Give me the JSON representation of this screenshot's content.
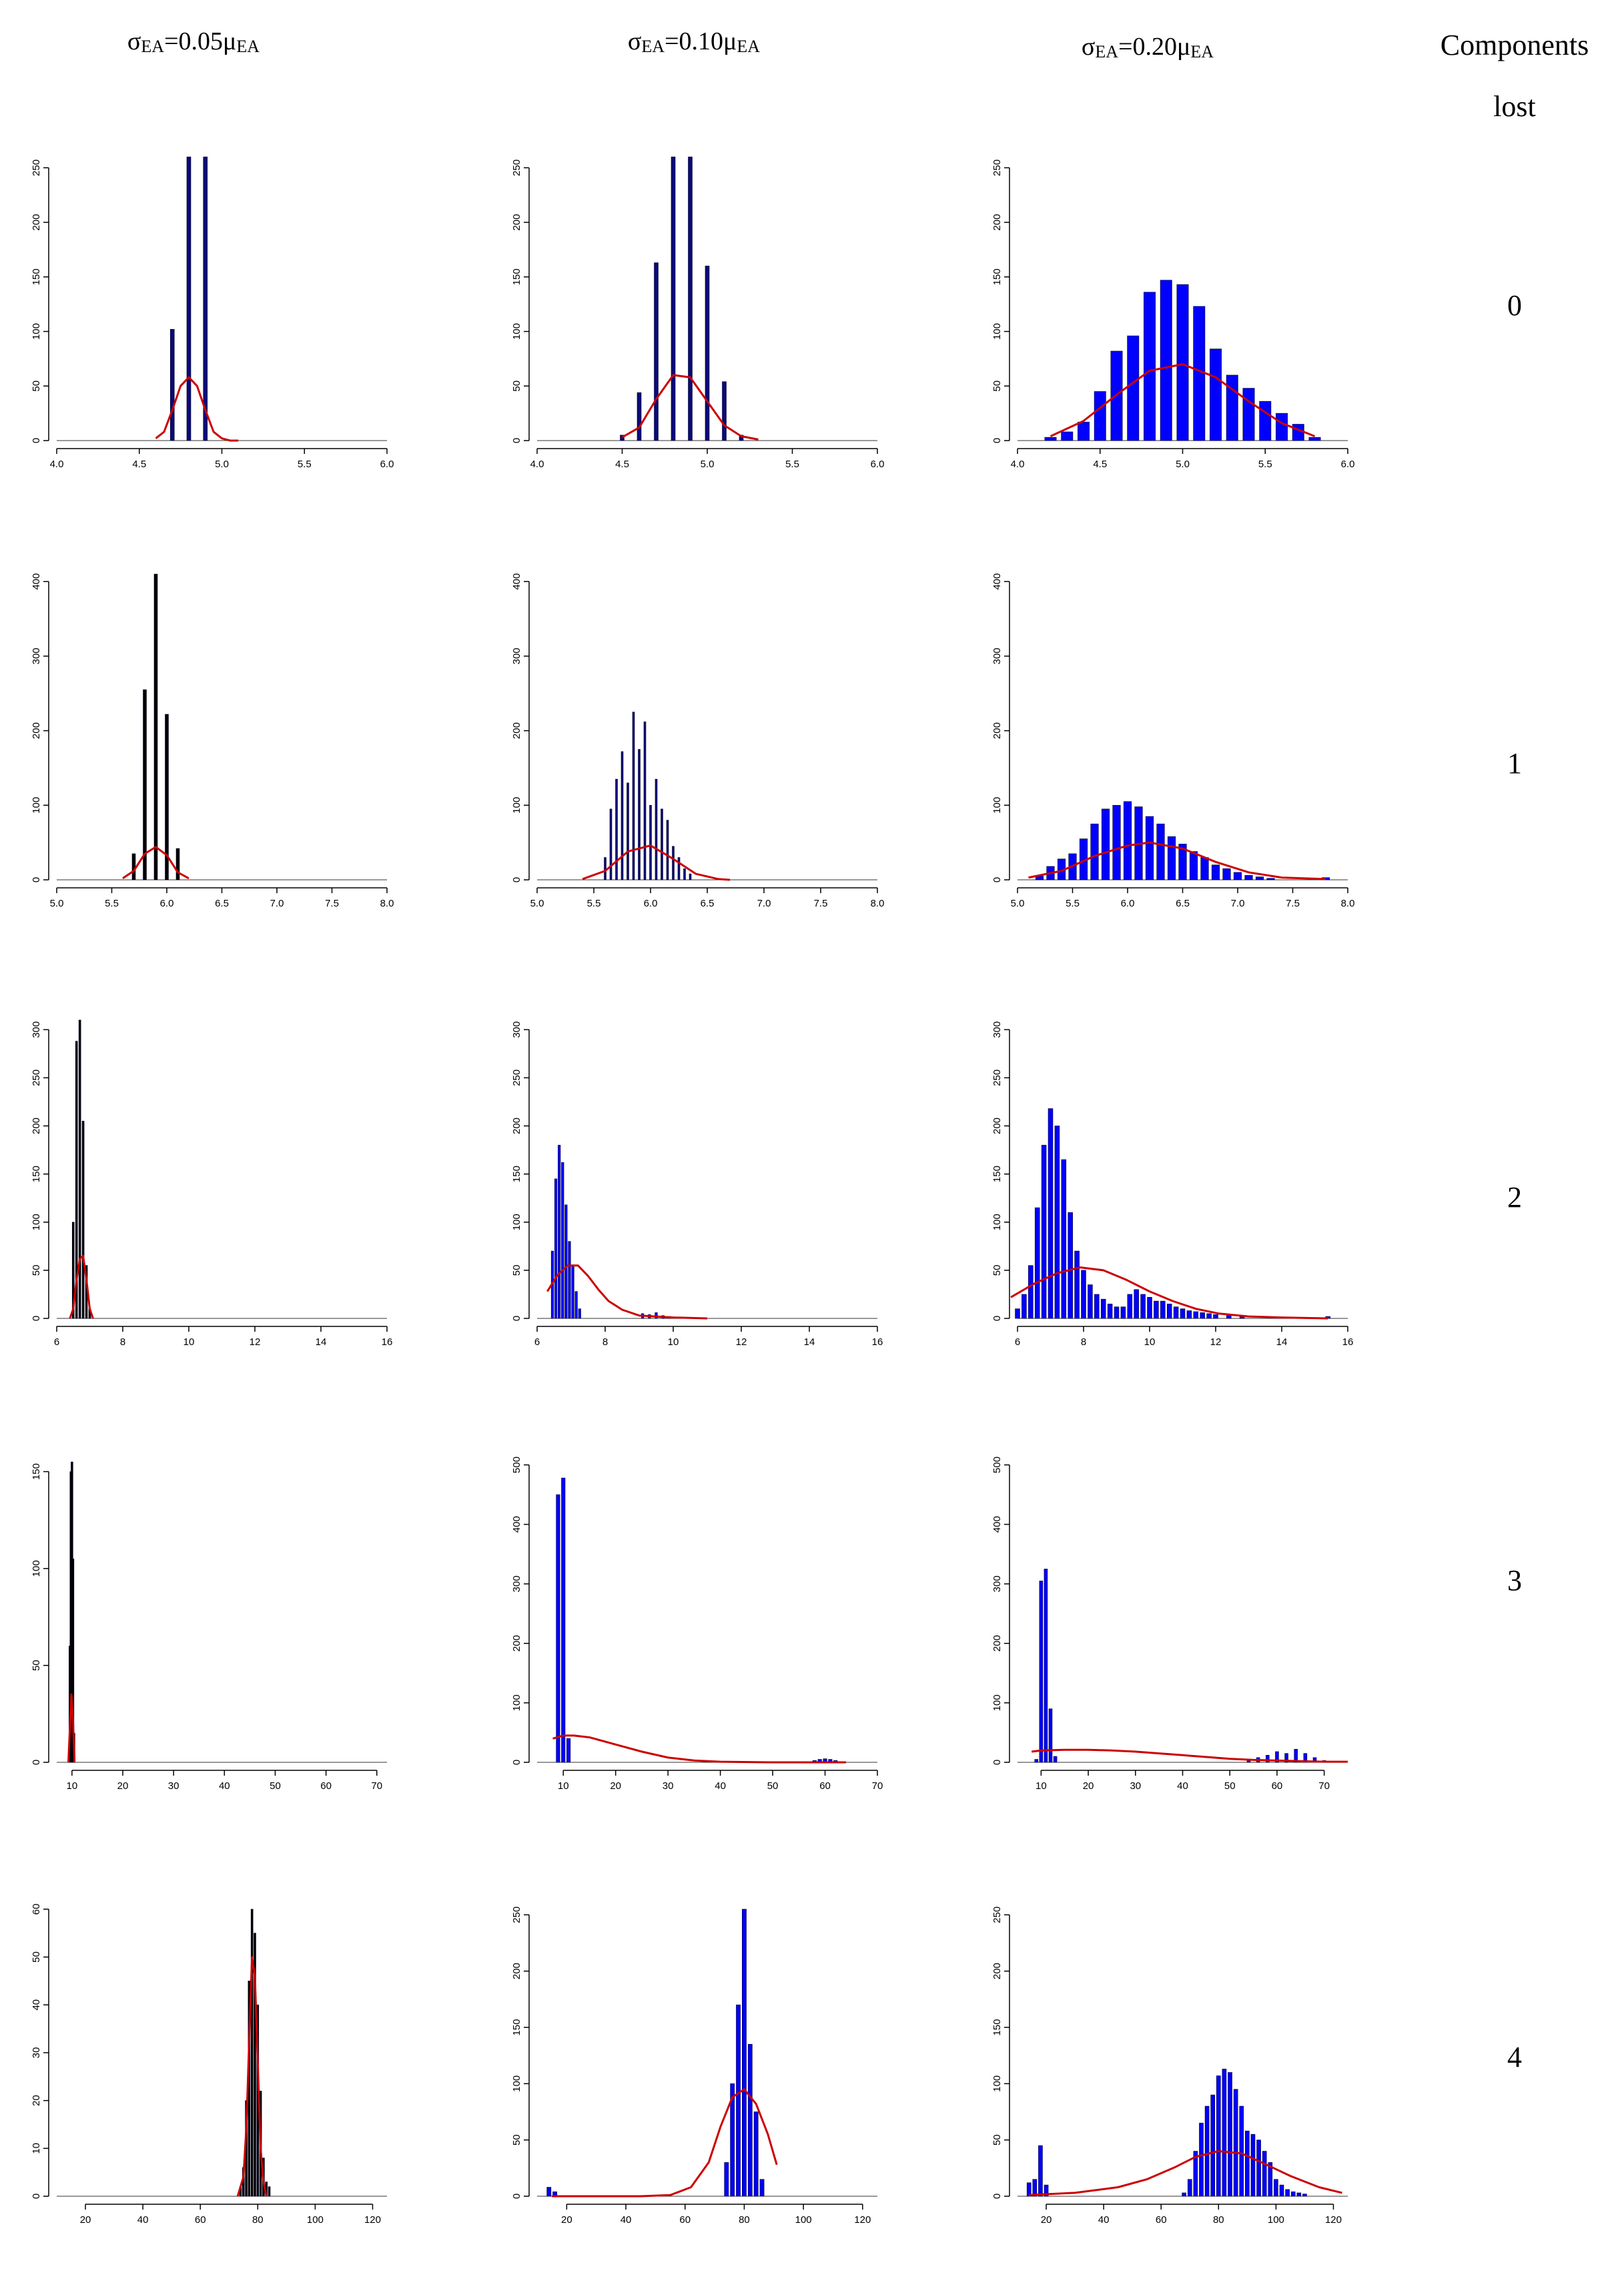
{
  "headers": {
    "col0": {
      "sym": "σ",
      "sub1": "EA",
      "mid": "=0.05μ",
      "sub2": "EA"
    },
    "col1": {
      "sym": "σ",
      "sub1": "EA",
      "mid": "=0.10μ",
      "sub2": "EA"
    },
    "col2": {
      "sym": "σ",
      "sub1": "EA",
      "mid": "=0.20μ",
      "sub2": "EA"
    },
    "components_line1": "Components",
    "components_line2": "lost"
  },
  "row_labels": [
    "0",
    "1",
    "2",
    "3",
    "4"
  ],
  "chart_data": [
    {
      "type": "bar",
      "style": "spike",
      "row": 0,
      "col": 0,
      "color": "#0a0a7a",
      "xlim": [
        4.0,
        6.0
      ],
      "xticks": [
        4.0,
        4.5,
        5.0,
        5.5,
        6.0
      ],
      "xtick_labels": [
        "4.0",
        "4.5",
        "5.0",
        "5.5",
        "6.0"
      ],
      "ylim": [
        0,
        260
      ],
      "yticks": [
        0,
        50,
        100,
        150,
        200,
        250
      ],
      "x": [
        4.7,
        4.8,
        4.9
      ],
      "values": [
        102,
        260,
        260
      ],
      "density": {
        "x": [
          4.6,
          4.65,
          4.7,
          4.75,
          4.8,
          4.85,
          4.9,
          4.95,
          5.0,
          5.05,
          5.1
        ],
        "y": [
          2,
          8,
          28,
          50,
          58,
          50,
          28,
          8,
          2,
          0,
          0
        ]
      }
    },
    {
      "type": "bar",
      "style": "spike",
      "row": 0,
      "col": 1,
      "color": "#0a0a7a",
      "xlim": [
        4.0,
        6.0
      ],
      "xticks": [
        4.0,
        4.5,
        5.0,
        5.5,
        6.0
      ],
      "xtick_labels": [
        "4.0",
        "4.5",
        "5.0",
        "5.5",
        "6.0"
      ],
      "ylim": [
        0,
        260
      ],
      "yticks": [
        0,
        50,
        100,
        150,
        200,
        250
      ],
      "x": [
        4.5,
        4.6,
        4.7,
        4.8,
        4.9,
        5.0,
        5.1,
        5.2
      ],
      "values": [
        5,
        44,
        163,
        260,
        260,
        160,
        54,
        5
      ],
      "density": {
        "x": [
          4.5,
          4.6,
          4.7,
          4.8,
          4.9,
          5.0,
          5.1,
          5.2,
          5.3
        ],
        "y": [
          3,
          12,
          38,
          60,
          58,
          36,
          14,
          4,
          1
        ]
      }
    },
    {
      "type": "bar",
      "style": "bar",
      "row": 0,
      "col": 2,
      "color": "#0000ff",
      "xlim": [
        4.0,
        6.0
      ],
      "xticks": [
        4.0,
        4.5,
        5.0,
        5.5,
        6.0
      ],
      "xtick_labels": [
        "4.0",
        "4.5",
        "5.0",
        "5.5",
        "6.0"
      ],
      "ylim": [
        0,
        260
      ],
      "yticks": [
        0,
        50,
        100,
        150,
        200,
        250
      ],
      "x": [
        4.2,
        4.3,
        4.4,
        4.5,
        4.6,
        4.7,
        4.8,
        4.9,
        5.0,
        5.1,
        5.2,
        5.3,
        5.4,
        5.5,
        5.6,
        5.7,
        5.8
      ],
      "values": [
        3,
        8,
        17,
        45,
        82,
        96,
        136,
        147,
        143,
        123,
        84,
        60,
        48,
        36,
        25,
        15,
        3
      ],
      "density": {
        "x": [
          4.2,
          4.4,
          4.6,
          4.8,
          5.0,
          5.2,
          5.4,
          5.6,
          5.8
        ],
        "y": [
          4,
          18,
          42,
          64,
          70,
          58,
          36,
          16,
          4
        ]
      }
    },
    {
      "type": "bar",
      "style": "spike",
      "row": 1,
      "col": 0,
      "color": "#000000",
      "xlim": [
        5.0,
        8.0
      ],
      "xticks": [
        5.0,
        5.5,
        6.0,
        6.5,
        7.0,
        7.5,
        8.0
      ],
      "xtick_labels": [
        "5.0",
        "5.5",
        "6.0",
        "6.5",
        "7.0",
        "7.5",
        "8.0"
      ],
      "ylim": [
        0,
        410
      ],
      "yticks": [
        0,
        100,
        200,
        300,
        400
      ],
      "x": [
        5.7,
        5.8,
        5.9,
        6.0,
        6.1
      ],
      "values": [
        35,
        255,
        413,
        222,
        42
      ],
      "density": {
        "x": [
          5.6,
          5.7,
          5.8,
          5.9,
          6.0,
          6.1,
          6.2
        ],
        "y": [
          2,
          12,
          35,
          44,
          33,
          10,
          2
        ]
      }
    },
    {
      "type": "bar",
      "style": "spike",
      "row": 1,
      "col": 1,
      "color": "#0a0a7a",
      "xlim": [
        5.0,
        8.0
      ],
      "xticks": [
        5.0,
        5.5,
        6.0,
        6.5,
        7.0,
        7.5,
        8.0
      ],
      "xtick_labels": [
        "5.0",
        "5.5",
        "6.0",
        "6.5",
        "7.0",
        "7.5",
        "8.0"
      ],
      "ylim": [
        0,
        410
      ],
      "yticks": [
        0,
        100,
        200,
        300,
        400
      ],
      "x": [
        5.6,
        5.65,
        5.7,
        5.75,
        5.8,
        5.85,
        5.9,
        5.95,
        6.0,
        6.05,
        6.1,
        6.15,
        6.2,
        6.25,
        6.3,
        6.35
      ],
      "values": [
        30,
        95,
        135,
        172,
        130,
        225,
        175,
        212,
        100,
        135,
        95,
        80,
        45,
        30,
        15,
        8
      ],
      "density": {
        "x": [
          5.4,
          5.6,
          5.8,
          6.0,
          6.2,
          6.4,
          6.6,
          6.7
        ],
        "y": [
          1,
          12,
          38,
          46,
          28,
          8,
          1,
          0
        ]
      }
    },
    {
      "type": "bar",
      "style": "bar",
      "row": 1,
      "col": 2,
      "color": "#0000ff",
      "xlim": [
        5.0,
        8.0
      ],
      "xticks": [
        5.0,
        5.5,
        6.0,
        6.5,
        7.0,
        7.5,
        8.0
      ],
      "xtick_labels": [
        "5.0",
        "5.5",
        "6.0",
        "6.5",
        "7.0",
        "7.5",
        "8.0"
      ],
      "ylim": [
        0,
        410
      ],
      "yticks": [
        0,
        100,
        200,
        300,
        400
      ],
      "x": [
        5.2,
        5.3,
        5.4,
        5.5,
        5.6,
        5.7,
        5.8,
        5.9,
        6.0,
        6.1,
        6.2,
        6.3,
        6.4,
        6.5,
        6.6,
        6.7,
        6.8,
        6.9,
        7.0,
        7.1,
        7.2,
        7.3,
        7.8
      ],
      "values": [
        5,
        18,
        28,
        35,
        55,
        75,
        95,
        100,
        105,
        98,
        85,
        75,
        58,
        48,
        38,
        30,
        20,
        15,
        10,
        6,
        4,
        2,
        3
      ],
      "density": {
        "x": [
          5.1,
          5.4,
          5.7,
          6.0,
          6.2,
          6.5,
          6.8,
          7.1,
          7.4,
          7.8
        ],
        "y": [
          3,
          12,
          32,
          46,
          50,
          42,
          24,
          10,
          3,
          1
        ]
      }
    },
    {
      "type": "bar",
      "style": "spike",
      "row": 2,
      "col": 0,
      "color": "#000000",
      "xlim": [
        6,
        16
      ],
      "xticks": [
        6,
        8,
        10,
        12,
        14,
        16
      ],
      "xtick_labels": [
        "6",
        "8",
        "10",
        "12",
        "14",
        "16"
      ],
      "ylim": [
        0,
        310
      ],
      "yticks": [
        0,
        50,
        100,
        150,
        200,
        250,
        300
      ],
      "x": [
        6.5,
        6.6,
        6.7,
        6.8,
        6.9,
        7.0
      ],
      "values": [
        100,
        288,
        310,
        205,
        55,
        10
      ],
      "density": {
        "x": [
          6.4,
          6.5,
          6.6,
          6.7,
          6.8,
          6.9,
          7.0,
          7.1
        ],
        "y": [
          0,
          10,
          40,
          62,
          65,
          40,
          10,
          0
        ]
      }
    },
    {
      "type": "bar",
      "style": "bar",
      "row": 2,
      "col": 1,
      "color": "#0000ff",
      "xlim": [
        6,
        16
      ],
      "xticks": [
        6,
        8,
        10,
        12,
        14,
        16
      ],
      "xtick_labels": [
        "6",
        "8",
        "10",
        "12",
        "14",
        "16"
      ],
      "ylim": [
        0,
        310
      ],
      "yticks": [
        0,
        50,
        100,
        150,
        200,
        250,
        300
      ],
      "x": [
        6.45,
        6.55,
        6.65,
        6.75,
        6.85,
        6.95,
        7.05,
        7.15,
        7.25,
        9.1,
        9.3,
        9.5,
        9.7,
        9.9
      ],
      "values": [
        70,
        145,
        180,
        162,
        118,
        80,
        55,
        28,
        10,
        5,
        4,
        6,
        3,
        2
      ],
      "density": {
        "x": [
          6.3,
          6.6,
          6.9,
          7.2,
          7.5,
          7.8,
          8.1,
          8.5,
          9.0,
          10,
          11
        ],
        "y": [
          28,
          45,
          55,
          55,
          44,
          30,
          18,
          9,
          3,
          1,
          0
        ]
      }
    },
    {
      "type": "bar",
      "style": "bar",
      "row": 2,
      "col": 2,
      "color": "#0000ff",
      "xlim": [
        6,
        16
      ],
      "xticks": [
        6,
        8,
        10,
        12,
        14,
        16
      ],
      "xtick_labels": [
        "6",
        "8",
        "10",
        "12",
        "14",
        "16"
      ],
      "ylim": [
        0,
        310
      ],
      "yticks": [
        0,
        50,
        100,
        150,
        200,
        250,
        300
      ],
      "x": [
        6.0,
        6.2,
        6.4,
        6.6,
        6.8,
        7.0,
        7.2,
        7.4,
        7.6,
        7.8,
        8.0,
        8.2,
        8.4,
        8.6,
        8.8,
        9.0,
        9.2,
        9.4,
        9.6,
        9.8,
        10.0,
        10.2,
        10.4,
        10.6,
        10.8,
        11.0,
        11.2,
        11.4,
        11.6,
        11.8,
        12.0,
        12.4,
        12.8,
        15.4
      ],
      "values": [
        10,
        25,
        55,
        115,
        180,
        218,
        200,
        165,
        110,
        70,
        50,
        35,
        25,
        20,
        15,
        12,
        12,
        25,
        30,
        25,
        22,
        18,
        18,
        15,
        12,
        10,
        8,
        7,
        6,
        5,
        4,
        3,
        2,
        2
      ],
      "density": {
        "x": [
          5.8,
          6.5,
          7.2,
          7.9,
          8.6,
          9.3,
          10,
          10.7,
          11.4,
          12.1,
          13,
          14,
          15.4
        ],
        "y": [
          22,
          36,
          47,
          53,
          50,
          40,
          28,
          18,
          10,
          5,
          2,
          1,
          0
        ]
      }
    },
    {
      "type": "bar",
      "style": "spike",
      "row": 3,
      "col": 0,
      "color": "#000000",
      "xlim": [
        7,
        72
      ],
      "xticks": [
        10,
        20,
        30,
        40,
        50,
        60,
        70
      ],
      "xtick_labels": [
        "10",
        "20",
        "30",
        "40",
        "50",
        "60",
        "70"
      ],
      "ylim": [
        0,
        155
      ],
      "yticks": [
        0,
        50,
        100,
        150
      ],
      "x": [
        9.6,
        9.8,
        10.0,
        10.2,
        10.4
      ],
      "values": [
        60,
        150,
        155,
        105,
        15
      ],
      "density": {
        "x": [
          9.3,
          9.6,
          9.9,
          10.2,
          10.5
        ],
        "y": [
          0,
          18,
          35,
          22,
          0
        ]
      }
    },
    {
      "type": "bar",
      "style": "bar",
      "row": 3,
      "col": 1,
      "color": "#0000ff",
      "xlim": [
        5,
        70
      ],
      "xticks": [
        10,
        20,
        30,
        40,
        50,
        60,
        70
      ],
      "xtick_labels": [
        "10",
        "20",
        "30",
        "40",
        "50",
        "60",
        "70"
      ],
      "ylim": [
        0,
        505
      ],
      "yticks": [
        0,
        100,
        200,
        300,
        400,
        500
      ],
      "x": [
        9,
        10,
        11,
        58,
        59,
        60,
        61,
        62
      ],
      "values": [
        450,
        478,
        40,
        3,
        5,
        6,
        5,
        3
      ],
      "density": {
        "x": [
          8,
          10,
          12,
          15,
          20,
          25,
          30,
          35,
          40,
          50,
          60,
          64
        ],
        "y": [
          40,
          45,
          45,
          42,
          30,
          18,
          8,
          3,
          1,
          0,
          0,
          0
        ]
      }
    },
    {
      "type": "bar",
      "style": "bar",
      "row": 3,
      "col": 2,
      "color": "#0000ff",
      "xlim": [
        5,
        75
      ],
      "xticks": [
        10,
        20,
        30,
        40,
        50,
        60,
        70
      ],
      "xtick_labels": [
        "10",
        "20",
        "30",
        "40",
        "50",
        "60",
        "70"
      ],
      "ylim": [
        0,
        505
      ],
      "yticks": [
        0,
        100,
        200,
        300,
        400,
        500
      ],
      "x": [
        9,
        10,
        11,
        12,
        13,
        54,
        56,
        58,
        60,
        62,
        64,
        66,
        68,
        70
      ],
      "values": [
        5,
        305,
        325,
        90,
        10,
        5,
        8,
        12,
        18,
        15,
        22,
        15,
        8,
        3
      ],
      "density": {
        "x": [
          8,
          10,
          15,
          20,
          25,
          30,
          35,
          40,
          45,
          50,
          55,
          60,
          65,
          70,
          75
        ],
        "y": [
          18,
          20,
          21,
          21,
          20,
          18,
          15,
          12,
          9,
          6,
          4,
          3,
          2,
          1,
          1
        ]
      }
    },
    {
      "type": "bar",
      "style": "spike",
      "row": 4,
      "col": 0,
      "color": "#000000",
      "xlim": [
        10,
        125
      ],
      "xticks": [
        20,
        40,
        60,
        80,
        100,
        120
      ],
      "xtick_labels": [
        "20",
        "40",
        "60",
        "80",
        "100",
        "120"
      ],
      "ylim": [
        0,
        60
      ],
      "yticks": [
        0,
        10,
        20,
        30,
        40,
        50,
        60
      ],
      "x": [
        74,
        75,
        76,
        77,
        78,
        79,
        80,
        81,
        82,
        83,
        84
      ],
      "values": [
        2,
        6,
        20,
        45,
        60,
        55,
        40,
        22,
        8,
        3,
        2
      ],
      "density": {
        "x": [
          73,
          75,
          76,
          77,
          78,
          79,
          80,
          81,
          82,
          83
        ],
        "y": [
          0,
          4,
          14,
          32,
          50,
          46,
          28,
          10,
          3,
          0
        ]
      }
    },
    {
      "type": "bar",
      "style": "bar",
      "row": 4,
      "col": 1,
      "color": "#0000ff",
      "xlim": [
        10,
        125
      ],
      "xticks": [
        20,
        40,
        60,
        80,
        100,
        120
      ],
      "xtick_labels": [
        "20",
        "40",
        "60",
        "80",
        "100",
        "120"
      ],
      "ylim": [
        0,
        255
      ],
      "yticks": [
        0,
        50,
        100,
        150,
        200,
        250
      ],
      "x": [
        14,
        16,
        74,
        76,
        78,
        80,
        82,
        84,
        86
      ],
      "values": [
        8,
        4,
        30,
        100,
        170,
        255,
        135,
        75,
        15
      ],
      "density": {
        "x": [
          15,
          30,
          45,
          55,
          62,
          68,
          72,
          76,
          80,
          84,
          88,
          91
        ],
        "y": [
          0,
          0,
          0,
          1,
          8,
          30,
          62,
          88,
          95,
          82,
          55,
          28
        ]
      }
    },
    {
      "type": "bar",
      "style": "bar",
      "row": 4,
      "col": 2,
      "color": "#0000ff",
      "xlim": [
        10,
        125
      ],
      "xticks": [
        20,
        40,
        60,
        80,
        100,
        120
      ],
      "xtick_labels": [
        "20",
        "40",
        "60",
        "80",
        "100",
        "120"
      ],
      "ylim": [
        0,
        255
      ],
      "yticks": [
        0,
        50,
        100,
        150,
        200,
        250
      ],
      "x": [
        14,
        16,
        18,
        20,
        68,
        70,
        72,
        74,
        76,
        78,
        80,
        82,
        84,
        86,
        88,
        90,
        92,
        94,
        96,
        98,
        100,
        102,
        104,
        106,
        108,
        110
      ],
      "values": [
        12,
        15,
        45,
        10,
        3,
        15,
        40,
        65,
        80,
        90,
        107,
        113,
        110,
        95,
        80,
        58,
        55,
        50,
        40,
        30,
        15,
        10,
        6,
        4,
        3,
        2
      ],
      "density": {
        "x": [
          14,
          30,
          45,
          55,
          65,
          72,
          80,
          88,
          95,
          105,
          115,
          123
        ],
        "y": [
          1,
          3,
          8,
          15,
          26,
          35,
          40,
          38,
          30,
          18,
          8,
          3
        ]
      }
    }
  ]
}
